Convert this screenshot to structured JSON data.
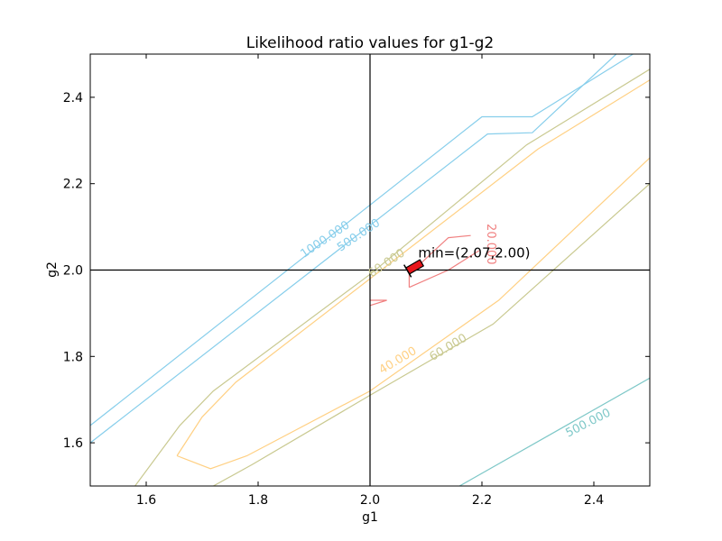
{
  "chart_data": {
    "type": "contour",
    "title": "Likelihood ratio values for g1-g2",
    "xlabel": "g1",
    "ylabel": "g2",
    "xlim": [
      1.5,
      2.5
    ],
    "ylim": [
      1.5,
      2.5
    ],
    "xticks": [
      {
        "value": 1.6,
        "label": "1.6"
      },
      {
        "value": 1.8,
        "label": "1.8"
      },
      {
        "value": 2.0,
        "label": "2.0"
      },
      {
        "value": 2.2,
        "label": "2.2"
      },
      {
        "value": 2.4,
        "label": "2.4"
      }
    ],
    "yticks": [
      {
        "value": 1.6,
        "label": "1.6"
      },
      {
        "value": 1.8,
        "label": "1.8"
      },
      {
        "value": 2.0,
        "label": "2.0"
      },
      {
        "value": 2.2,
        "label": "2.2"
      },
      {
        "value": 2.4,
        "label": "2.4"
      }
    ],
    "reference_lines": {
      "x": 2.0,
      "y": 2.0,
      "color": "#000000"
    },
    "minimum": {
      "x": 2.07,
      "y": 2.0,
      "label": "min=(2.07,2.00)",
      "marker_color": "#e8161b"
    },
    "contours": [
      {
        "level": "1000.000",
        "color": "#87ceeb",
        "points": [
          [
            1.5,
            1.64
          ],
          [
            2.2,
            2.355
          ],
          [
            2.29,
            2.355
          ],
          [
            2.47,
            2.5
          ]
        ]
      },
      {
        "level": "500.000",
        "color": "#87ceeb",
        "points": [
          [
            1.5,
            1.6
          ],
          [
            2.21,
            2.315
          ],
          [
            2.29,
            2.318
          ],
          [
            2.44,
            2.5
          ]
        ]
      },
      {
        "level": "500.000",
        "color": "#7ec8c8",
        "points": [
          [
            2.16,
            1.5
          ],
          [
            2.5,
            1.75
          ]
        ]
      },
      {
        "level": "60.000",
        "color": "#c9c990",
        "points": [
          [
            1.58,
            1.5
          ],
          [
            1.66,
            1.64
          ],
          [
            1.72,
            1.72
          ],
          [
            2.0,
            1.99
          ],
          [
            2.28,
            2.29
          ],
          [
            2.5,
            2.465
          ]
        ]
      },
      {
        "level": "60.000",
        "color": "#c9c990",
        "points": [
          [
            1.72,
            1.5
          ],
          [
            1.79,
            1.55
          ],
          [
            2.0,
            1.71
          ],
          [
            2.22,
            1.875
          ],
          [
            2.5,
            2.2
          ]
        ]
      },
      {
        "level": "40.000",
        "color": "#ffd083",
        "points": [
          [
            1.655,
            1.57
          ],
          [
            1.715,
            1.54
          ],
          [
            1.78,
            1.57
          ],
          [
            2.0,
            1.72
          ],
          [
            2.23,
            1.93
          ],
          [
            2.5,
            2.26
          ]
        ]
      },
      {
        "level": "40.000",
        "color": "#ffd083",
        "points": [
          [
            1.655,
            1.57
          ],
          [
            1.7,
            1.66
          ],
          [
            1.76,
            1.74
          ],
          [
            2.0,
            1.98
          ],
          [
            2.3,
            2.28
          ],
          [
            2.5,
            2.44
          ]
        ]
      },
      {
        "level": "20.000",
        "color": "#f08080",
        "points": [
          [
            2.07,
            1.96
          ],
          [
            2.07,
            1.99
          ],
          [
            2.115,
            2.045
          ],
          [
            2.14,
            2.075
          ],
          [
            2.18,
            2.08
          ]
        ]
      },
      {
        "level": "20.000",
        "color": "#f08080",
        "points": [
          [
            2.07,
            1.96
          ],
          [
            2.14,
            2.0
          ],
          [
            2.195,
            2.045
          ]
        ]
      },
      {
        "level": "",
        "color": "#f08080",
        "points": [
          [
            2.0,
            1.918
          ],
          [
            2.03,
            1.93
          ],
          [
            2.0,
            1.93
          ]
        ]
      }
    ],
    "contour_labels": [
      {
        "text": "1000.000",
        "color": "#87ceeb",
        "x": 1.92,
        "y": 2.07,
        "angle": -34
      },
      {
        "text": "500.000",
        "color": "#87ceeb",
        "x": 1.98,
        "y": 2.08,
        "angle": -34
      },
      {
        "text": "60.000",
        "color": "#c9c990",
        "x": 2.03,
        "y": 2.015,
        "angle": -34
      },
      {
        "text": "60.000",
        "color": "#c9c990",
        "x": 2.14,
        "y": 1.82,
        "angle": -31
      },
      {
        "text": "40.000",
        "color": "#ffd083",
        "x": 2.05,
        "y": 1.79,
        "angle": -31
      },
      {
        "text": "500.000",
        "color": "#7ec8c8",
        "x": 2.39,
        "y": 1.645,
        "angle": -27
      },
      {
        "text": "20.000",
        "color": "#f08080",
        "x": 2.215,
        "y": 2.06,
        "angle": 90
      }
    ]
  }
}
